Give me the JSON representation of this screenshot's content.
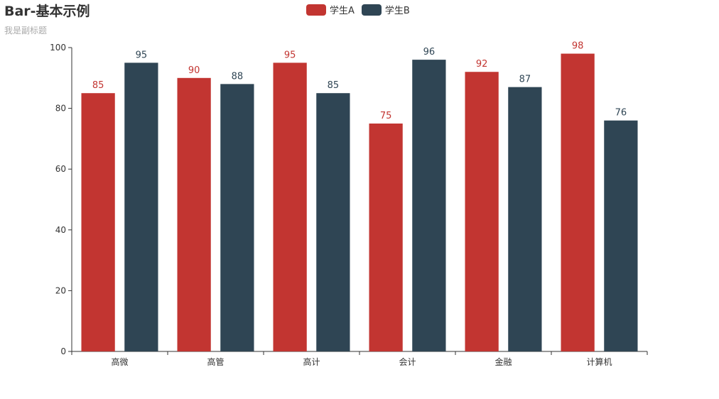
{
  "title": "Bar-基本示例",
  "subtitle": "我是副标题",
  "legend": {
    "items": [
      {
        "label": "学生A",
        "color": "#c23531"
      },
      {
        "label": "学生B",
        "color": "#2f4554"
      }
    ]
  },
  "chart_data": {
    "type": "bar",
    "title": "Bar-基本示例",
    "subtitle": "我是副标题",
    "categories": [
      "高微",
      "高管",
      "高计",
      "会计",
      "金融",
      "计算机"
    ],
    "series": [
      {
        "name": "学生A",
        "values": [
          85,
          90,
          95,
          75,
          92,
          98
        ],
        "color": "#c23531"
      },
      {
        "name": "学生B",
        "values": [
          95,
          88,
          85,
          96,
          87,
          76
        ],
        "color": "#2f4554"
      }
    ],
    "ylim": [
      0,
      100
    ],
    "yticks": [
      0,
      20,
      40,
      60,
      80,
      100
    ],
    "grid": false,
    "legend_position": "top-center",
    "data_labels": true,
    "xlabel": "",
    "ylabel": ""
  }
}
